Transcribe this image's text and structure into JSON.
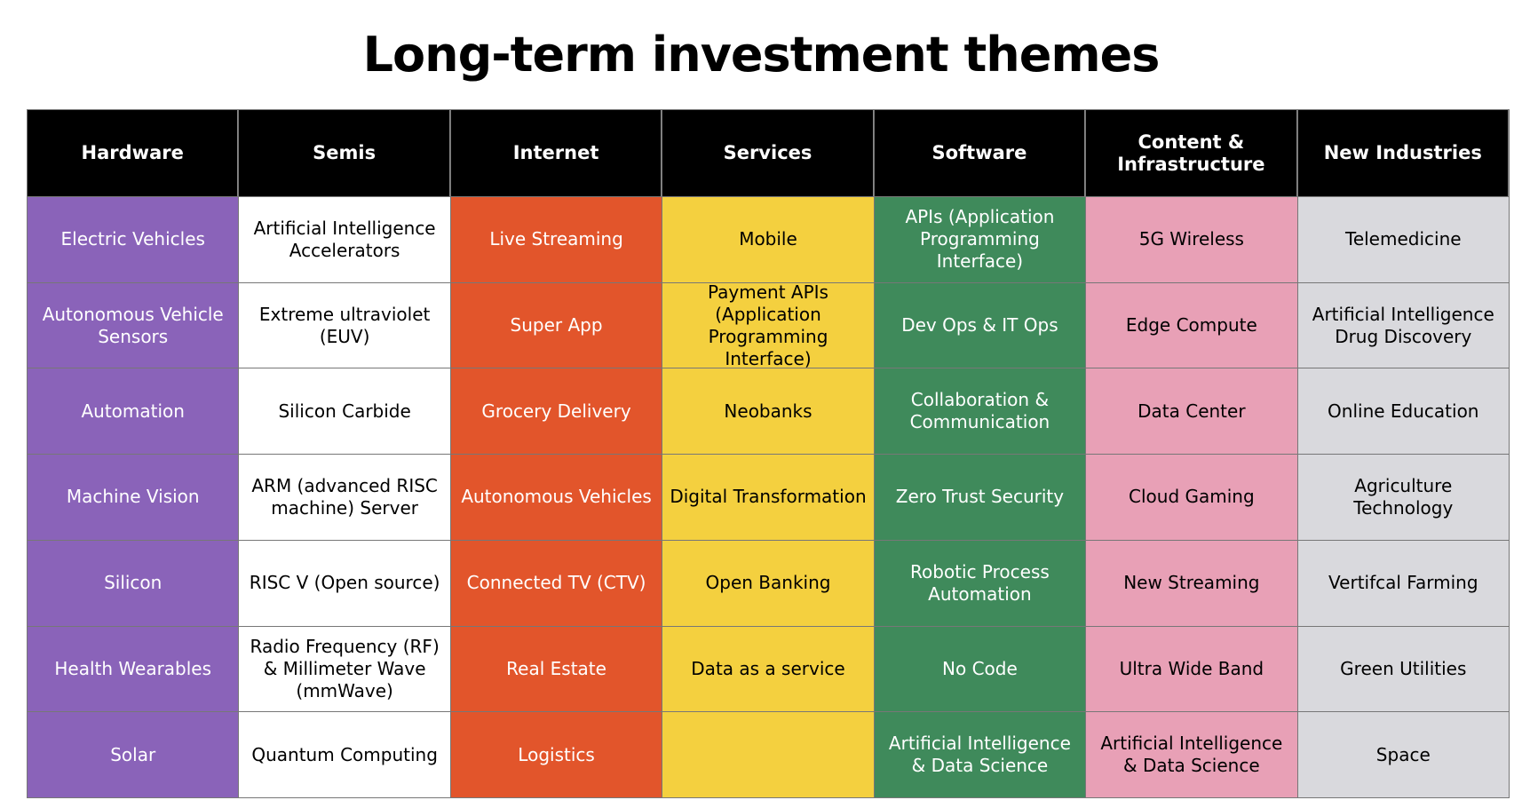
{
  "title": "Long-term investment themes",
  "colors": {
    "header_bg": "#000000",
    "hardware": "#8a63b9",
    "semis": "#ffffff",
    "internet": "#e2552b",
    "services": "#f4d03f",
    "software": "#3f8a5b",
    "content": "#e8a0b6",
    "new_industries": "#d9d9dd"
  },
  "table": {
    "headers": [
      "Hardware",
      "Semis",
      "Internet",
      "Services",
      "Software",
      "Content & Infrastructure",
      "New Industries"
    ],
    "rows": [
      [
        "Electric Vehicles",
        "Artificial Intelligence Accelerators",
        "Live Streaming",
        "Mobile",
        "APIs (Application Programming Interface)",
        "5G Wireless",
        "Telemedicine"
      ],
      [
        "Autonomous Vehicle Sensors",
        "Extreme ultraviolet (EUV)",
        "Super App",
        "Payment APIs (Application Programming Interface)",
        "Dev Ops & IT Ops",
        "Edge Compute",
        "Artificial Intelligence Drug Discovery"
      ],
      [
        "Automation",
        "Silicon Carbide",
        "Grocery Delivery",
        "Neobanks",
        "Collaboration & Communication",
        "Data Center",
        "Online Education"
      ],
      [
        "Machine Vision",
        "ARM (advanced RISC machine) Server",
        "Autonomous Vehicles",
        "Digital Transformation",
        "Zero Trust Security",
        "Cloud Gaming",
        "Agriculture Technology"
      ],
      [
        "Silicon",
        "RISC V (Open source)",
        "Connected TV (CTV)",
        "Open Banking",
        "Robotic Process Automation",
        "New Streaming",
        "Vertifcal Farming"
      ],
      [
        "Health Wearables",
        "Radio Frequency (RF) & Millimeter Wave (mmWave)",
        "Real Estate",
        "Data as a service",
        "No Code",
        "Ultra Wide Band",
        "Green Utilities"
      ],
      [
        "Solar",
        "Quantum Computing",
        "Logistics",
        "",
        "Artificial Intelligence & Data Science",
        "Artificial Intelligence & Data Science",
        "Space"
      ]
    ]
  }
}
